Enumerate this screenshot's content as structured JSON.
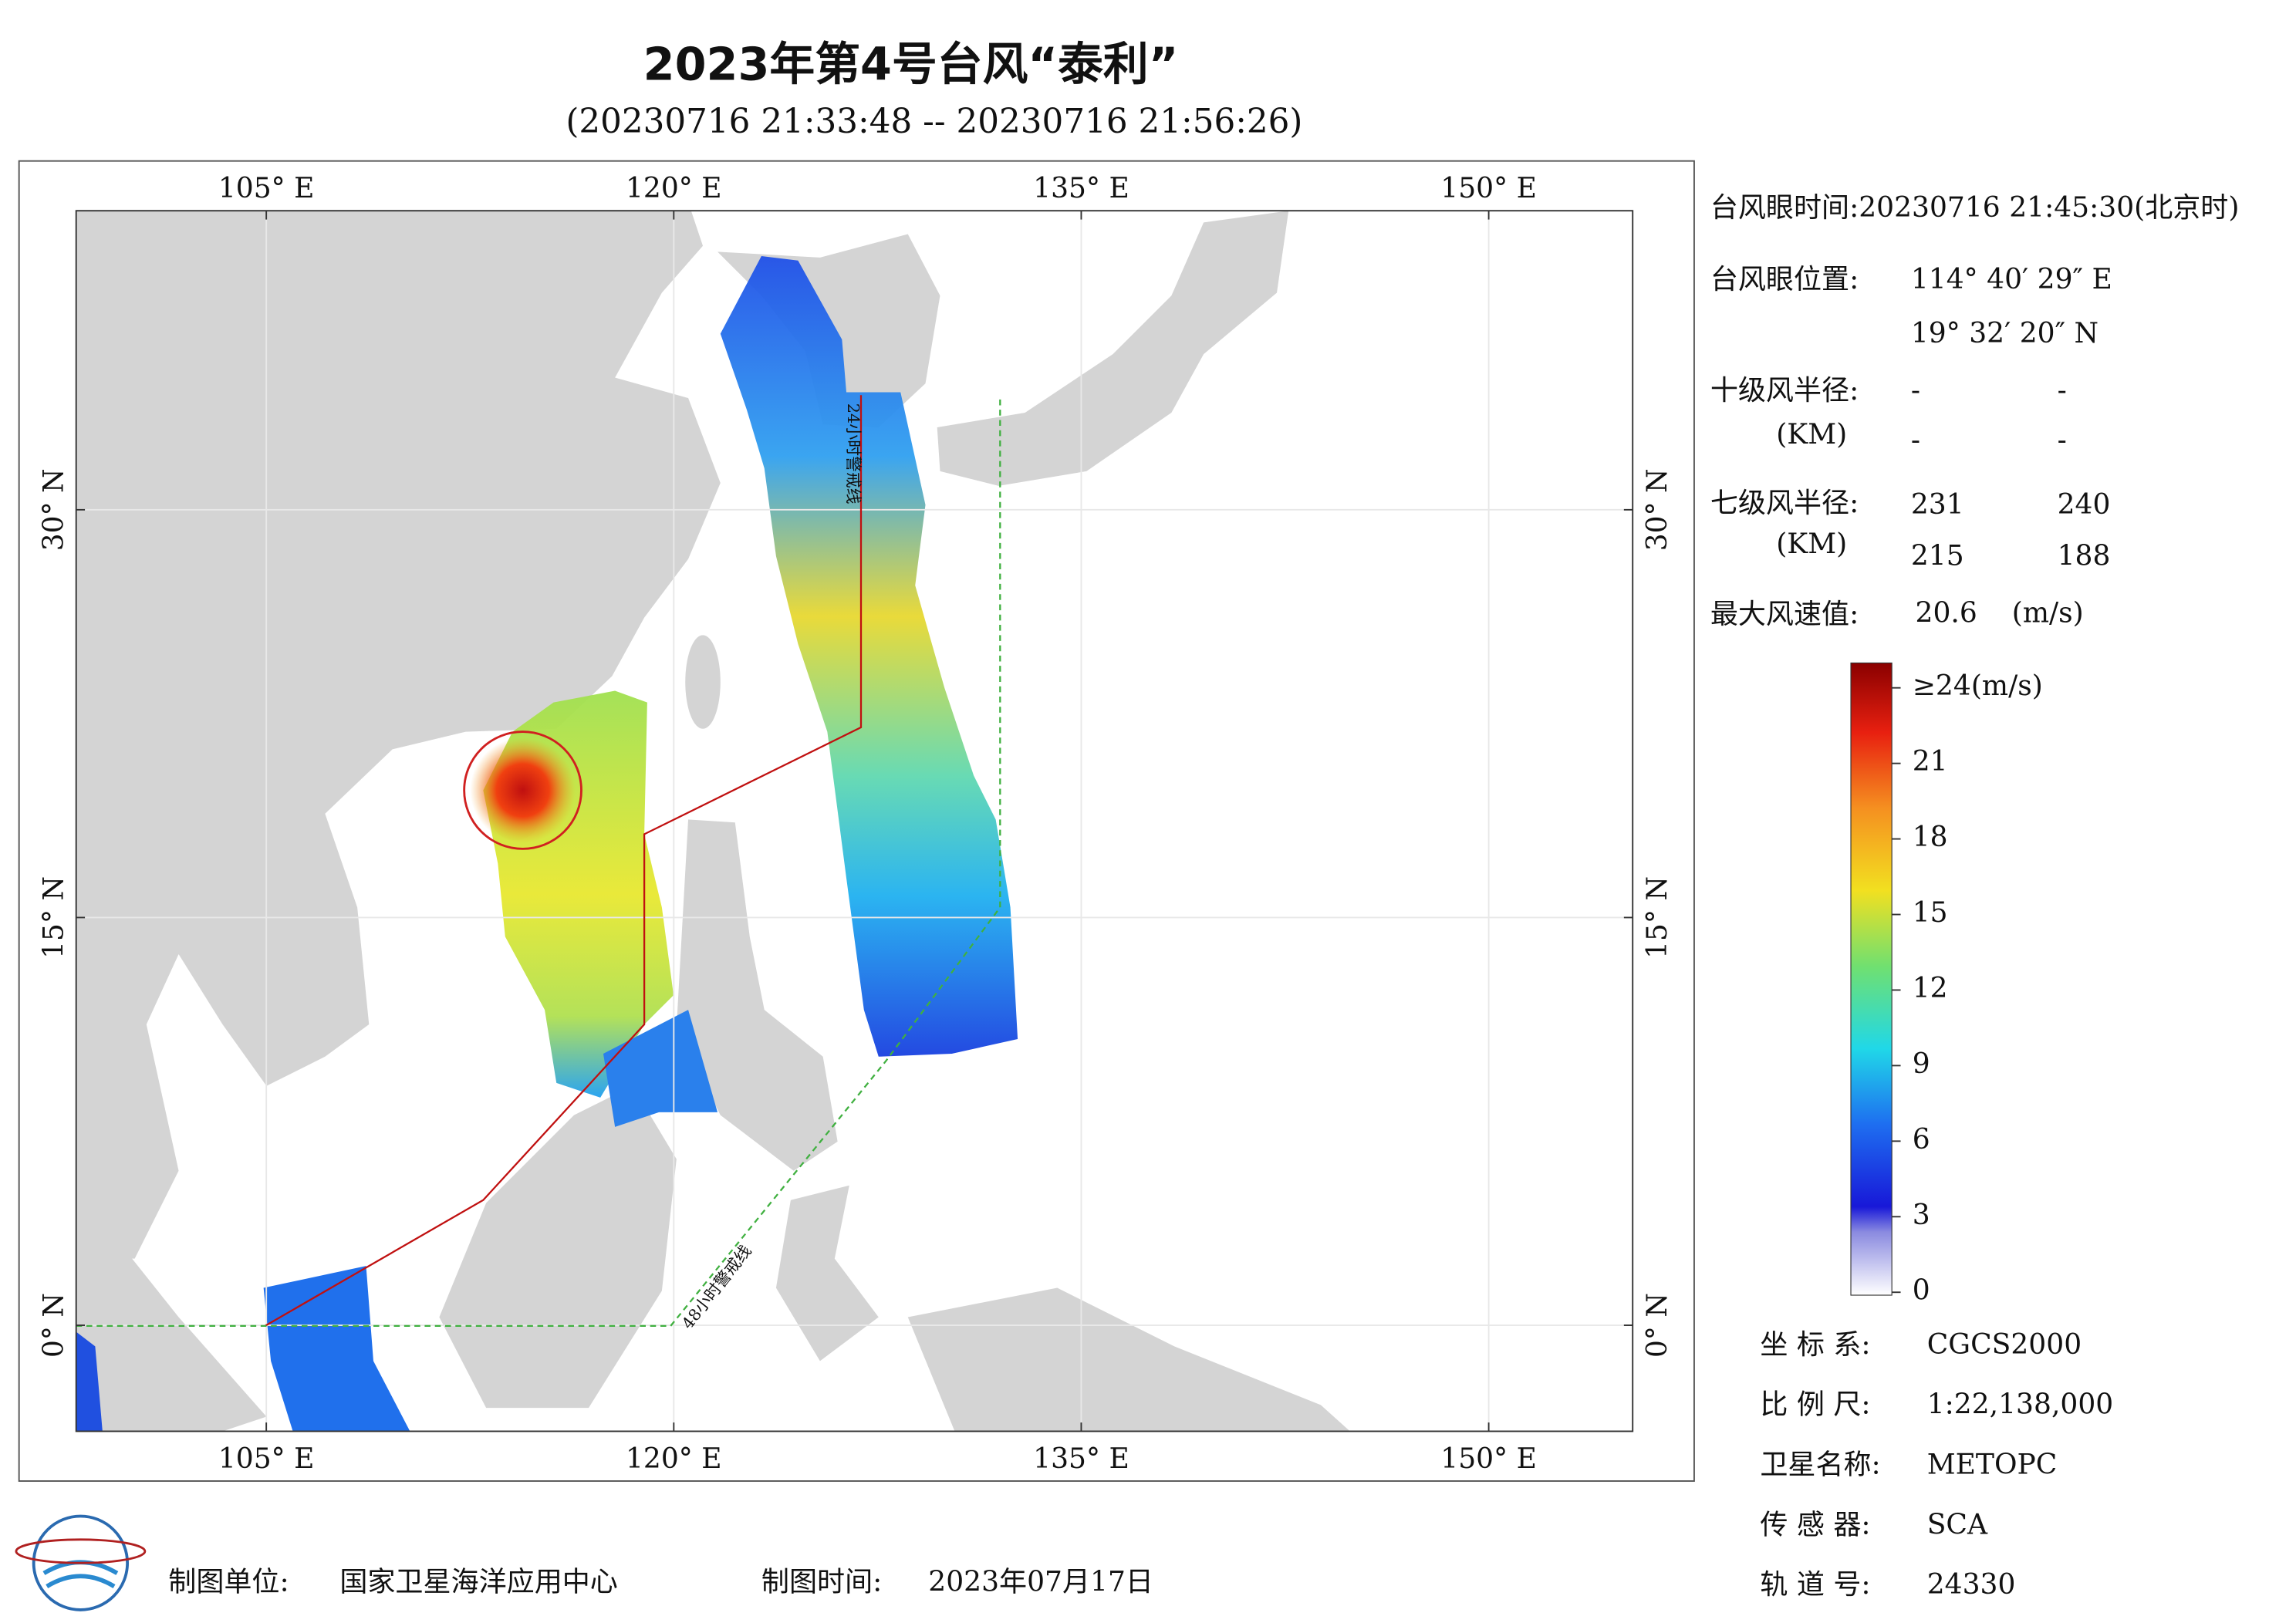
{
  "header": {
    "title": "2023年第4号台风“泰利”",
    "subtitle": "(20230716 21:33:48 -- 20230716 21:56:26)"
  },
  "map": {
    "lon_range": [
      98,
      155.3
    ],
    "lat_range": [
      -3.9,
      41
    ],
    "grid": true,
    "lon_ticks": [
      {
        "value": 105,
        "label": "105° E"
      },
      {
        "value": 120,
        "label": "120° E"
      },
      {
        "value": 135,
        "label": "135° E"
      },
      {
        "value": 150,
        "label": "150° E"
      }
    ],
    "lat_ticks": [
      {
        "value": 0,
        "label": "0° N"
      },
      {
        "value": 15,
        "label": "15° N"
      },
      {
        "value": 30,
        "label": "30° N"
      }
    ],
    "annotations": [
      "24小时警戒线",
      "48小时警戒线"
    ]
  },
  "info": {
    "eye_time": "台风眼时间:20230716 21:45:30(北京时)",
    "eye_position_label": "台风眼位置:",
    "eye_lon": "114° 40′ 29″ E",
    "eye_lat": "19° 32′ 20″ N",
    "r10_label": "十级风半径:",
    "r10_unit": "(KM)",
    "r10": [
      "-",
      "-",
      "-",
      "-"
    ],
    "r7_label": "七级风半径:",
    "r7_unit": "(KM)",
    "r7": [
      231,
      240,
      215,
      188
    ],
    "max_wind_label": "最大风速值:",
    "max_wind": "20.6",
    "max_wind_unit": "(m/s)"
  },
  "colorbar": {
    "range": [
      0,
      24
    ],
    "ticks": [
      0,
      3,
      6,
      9,
      12,
      15,
      18,
      21,
      {
        "value": 24,
        "label": "≥24(m/s)"
      }
    ]
  },
  "meta": [
    {
      "label": "坐 标 系:",
      "value": "CGCS2000"
    },
    {
      "label": "比 例 尺:",
      "value": "1:22,138,000"
    },
    {
      "label": "卫星名称:",
      "value": "METOPC"
    },
    {
      "label": "传 感 器:",
      "value": "SCA"
    },
    {
      "label": "轨 道 号:",
      "value": "24330"
    }
  ],
  "footer": {
    "unit_label": "制图单位:",
    "unit": "国家卫星海洋应用中心",
    "time_label": "制图时间:",
    "time": "2023年07月17日"
  }
}
